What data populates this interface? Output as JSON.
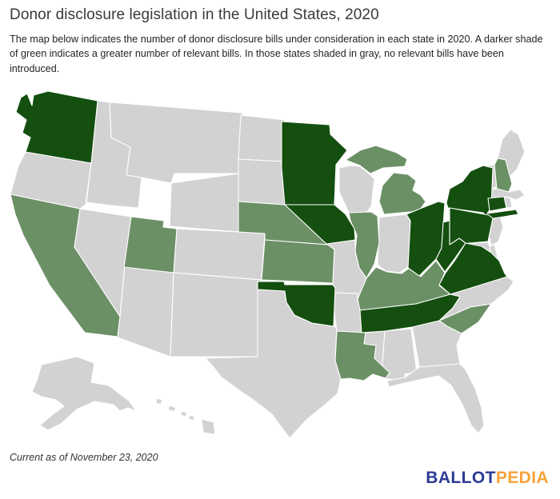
{
  "header": {
    "title": "Donor disclosure legislation in the United States, 2020",
    "description": "The map below indicates the number of donor disclosure bills under consideration in each state in 2020. A darker shade of green indicates a greater number of relevant bills. In those states shaded in gray, no relevant bills have been introduced."
  },
  "footer": {
    "note": "Current as of November 23, 2020"
  },
  "logo": {
    "primary": "BALLOT",
    "secondary": "PEDIA",
    "primary_color": "#2b3a94",
    "secondary_color": "#f6a33b"
  },
  "map_data": {
    "type": "choropleth",
    "region": "United States",
    "colors": {
      "dark": "#144f0f",
      "medium": "#6c9066",
      "gray": "#d2d2d2",
      "border": "#ffffff",
      "background": "#ffffff"
    },
    "category_meanings": {
      "dark": "greater number of relevant donor disclosure bills",
      "medium": "fewer relevant donor disclosure bills",
      "gray": "no relevant bills introduced"
    },
    "states": [
      {
        "id": "OR",
        "name": "Oregon",
        "category": "gray"
      },
      {
        "id": "NV",
        "name": "Nevada",
        "category": "gray"
      },
      {
        "id": "ID",
        "name": "Idaho",
        "category": "gray"
      },
      {
        "id": "MT",
        "name": "Montana",
        "category": "gray"
      },
      {
        "id": "WY",
        "name": "Wyoming",
        "category": "gray"
      },
      {
        "id": "CO",
        "name": "Colorado",
        "category": "gray"
      },
      {
        "id": "AZ",
        "name": "Arizona",
        "category": "gray"
      },
      {
        "id": "NM",
        "name": "New Mexico",
        "category": "gray"
      },
      {
        "id": "ND",
        "name": "North Dakota",
        "category": "gray"
      },
      {
        "id": "SD",
        "name": "South Dakota",
        "category": "gray"
      },
      {
        "id": "TX",
        "name": "Texas",
        "category": "gray"
      },
      {
        "id": "MO",
        "name": "Missouri",
        "category": "gray"
      },
      {
        "id": "AR",
        "name": "Arkansas",
        "category": "gray"
      },
      {
        "id": "WI",
        "name": "Wisconsin",
        "category": "gray"
      },
      {
        "id": "IN",
        "name": "Indiana",
        "category": "gray"
      },
      {
        "id": "MS",
        "name": "Mississippi",
        "category": "gray"
      },
      {
        "id": "AL",
        "name": "Alabama",
        "category": "gray"
      },
      {
        "id": "GA",
        "name": "Georgia",
        "category": "gray"
      },
      {
        "id": "FL",
        "name": "Florida",
        "category": "gray"
      },
      {
        "id": "NC",
        "name": "North Carolina",
        "category": "gray"
      },
      {
        "id": "NJ",
        "name": "New Jersey",
        "category": "gray"
      },
      {
        "id": "DE",
        "name": "Delaware",
        "category": "gray"
      },
      {
        "id": "MD",
        "name": "Maryland",
        "category": "gray"
      },
      {
        "id": "VT",
        "name": "Vermont",
        "category": "gray"
      },
      {
        "id": "ME",
        "name": "Maine",
        "category": "gray"
      },
      {
        "id": "MA",
        "name": "Massachusetts",
        "category": "gray"
      },
      {
        "id": "RI",
        "name": "Rhode Island",
        "category": "gray"
      },
      {
        "id": "AK",
        "name": "Alaska",
        "category": "gray"
      },
      {
        "id": "HI",
        "name": "Hawaii",
        "category": "gray"
      },
      {
        "id": "CA",
        "name": "California",
        "category": "medium"
      },
      {
        "id": "UT",
        "name": "Utah",
        "category": "medium"
      },
      {
        "id": "NE",
        "name": "Nebraska",
        "category": "medium"
      },
      {
        "id": "KS",
        "name": "Kansas",
        "category": "medium"
      },
      {
        "id": "IL",
        "name": "Illinois",
        "category": "medium"
      },
      {
        "id": "MI",
        "name": "Michigan",
        "category": "medium"
      },
      {
        "id": "KY",
        "name": "Kentucky",
        "category": "medium"
      },
      {
        "id": "LA",
        "name": "Louisiana",
        "category": "medium"
      },
      {
        "id": "SC",
        "name": "South Carolina",
        "category": "medium"
      },
      {
        "id": "NH",
        "name": "New Hampshire",
        "category": "medium"
      },
      {
        "id": "WA",
        "name": "Washington",
        "category": "dark"
      },
      {
        "id": "MN",
        "name": "Minnesota",
        "category": "dark"
      },
      {
        "id": "IA",
        "name": "Iowa",
        "category": "dark"
      },
      {
        "id": "OK",
        "name": "Oklahoma",
        "category": "dark"
      },
      {
        "id": "TN",
        "name": "Tennessee",
        "category": "dark"
      },
      {
        "id": "OH",
        "name": "Ohio",
        "category": "dark"
      },
      {
        "id": "NY",
        "name": "New York",
        "category": "dark"
      },
      {
        "id": "PA",
        "name": "Pennsylvania",
        "category": "dark"
      },
      {
        "id": "CT",
        "name": "Connecticut",
        "category": "dark"
      },
      {
        "id": "WV",
        "name": "West Virginia",
        "category": "dark"
      },
      {
        "id": "VA",
        "name": "Virginia",
        "category": "dark"
      }
    ]
  }
}
